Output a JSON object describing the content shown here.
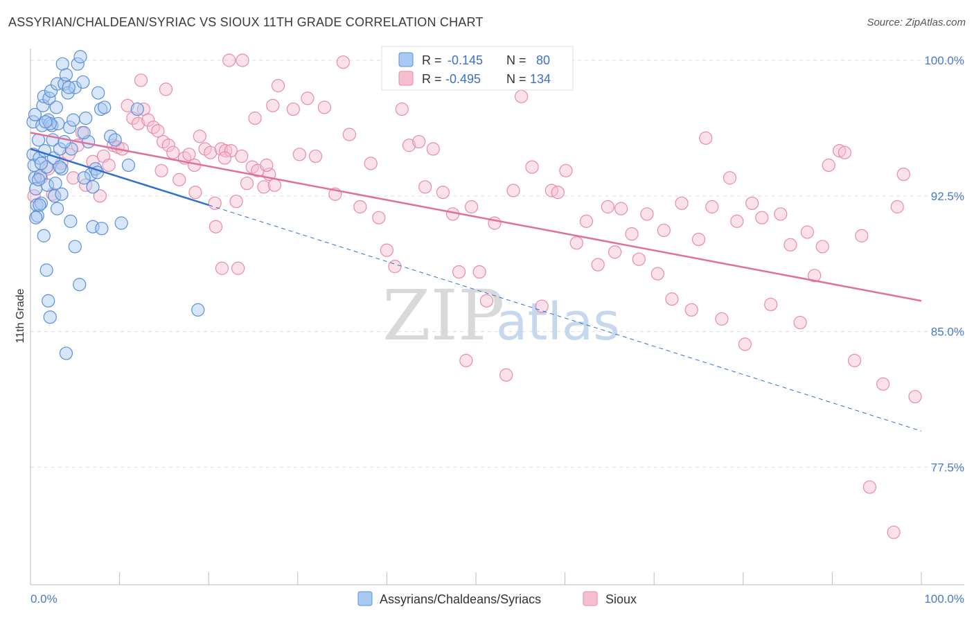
{
  "header": {
    "title": "ASSYRIAN/CHALDEAN/SYRIAC VS SIOUX 11TH GRADE CORRELATION CHART",
    "source": "Source: ZipAtlas.com"
  },
  "watermark": {
    "zip": "ZIP",
    "atlas": "atlas"
  },
  "legend_top": {
    "rows": [
      {
        "r_label": "R =",
        "r_value": "-0.145",
        "n_label": "N =",
        "n_value": "80"
      },
      {
        "r_label": "R =",
        "r_value": "-0.495",
        "n_label": "N =",
        "n_value": "134"
      }
    ]
  },
  "colors": {
    "blue_fill": "#a9c8f2",
    "blue_stroke": "#5a8fd8",
    "blue_line": "#2f6fd0",
    "pink_fill": "#f6bfd0",
    "pink_stroke": "#e98aab",
    "pink_line": "#e0709a",
    "grid": "#dddddd",
    "tick_label": "#4a78c8"
  },
  "chart_data": {
    "type": "scatter",
    "title": "ASSYRIAN/CHALDEAN/SYRIAC VS SIOUX 11TH GRADE CORRELATION CHART",
    "xlabel": "",
    "ylabel": "11th Grade",
    "xlim": [
      0,
      100
    ],
    "ylim": [
      71,
      101
    ],
    "x_tick_labels": [
      "0.0%",
      "100.0%"
    ],
    "y_ticks": [
      77.5,
      85.0,
      92.5,
      100.0
    ],
    "y_tick_labels": [
      "77.5%",
      "85.0%",
      "92.5%",
      "100.0%"
    ],
    "grid": true,
    "legend_position": "top-center",
    "series": [
      {
        "name": "Assyrians/Chaldeans/Syriacs",
        "r": -0.145,
        "n": 80,
        "trend": {
          "x": [
            0,
            20
          ],
          "y": [
            95.1,
            92.0
          ],
          "dashed_to": [
            100,
            79.5
          ]
        },
        "points": [
          [
            0.3,
            94.8
          ],
          [
            0.4,
            94.2
          ],
          [
            0.5,
            93.5
          ],
          [
            0.6,
            92.9
          ],
          [
            0.7,
            92.0
          ],
          [
            0.8,
            91.4
          ],
          [
            0.3,
            96.6
          ],
          [
            0.5,
            97.0
          ],
          [
            0.9,
            95.6
          ],
          [
            1.0,
            94.6
          ],
          [
            1.1,
            93.6
          ],
          [
            1.2,
            92.1
          ],
          [
            1.3,
            96.4
          ],
          [
            1.4,
            97.5
          ],
          [
            1.5,
            98.0
          ],
          [
            1.6,
            95.0
          ],
          [
            1.8,
            94.1
          ],
          [
            1.9,
            93.1
          ],
          [
            2.0,
            96.7
          ],
          [
            2.1,
            97.9
          ],
          [
            2.3,
            98.3
          ],
          [
            2.4,
            96.4
          ],
          [
            2.5,
            95.6
          ],
          [
            2.6,
            94.6
          ],
          [
            2.7,
            92.5
          ],
          [
            2.9,
            97.4
          ],
          [
            3.0,
            98.7
          ],
          [
            3.1,
            96.5
          ],
          [
            3.3,
            95.1
          ],
          [
            3.5,
            94.0
          ],
          [
            3.6,
            99.8
          ],
          [
            3.8,
            98.7
          ],
          [
            4.0,
            99.2
          ],
          [
            4.2,
            98.2
          ],
          [
            4.4,
            96.3
          ],
          [
            4.6,
            95.1
          ],
          [
            4.8,
            96.7
          ],
          [
            5.0,
            98.5
          ],
          [
            5.3,
            99.8
          ],
          [
            5.6,
            100.2
          ],
          [
            5.9,
            98.8
          ],
          [
            6.2,
            96.8
          ],
          [
            6.5,
            95.5
          ],
          [
            6.8,
            93.7
          ],
          [
            7.0,
            93.0
          ],
          [
            7.3,
            94.0
          ],
          [
            7.6,
            98.2
          ],
          [
            7.9,
            97.3
          ],
          [
            8.3,
            97.4
          ],
          [
            1.0,
            92.0
          ],
          [
            1.5,
            90.3
          ],
          [
            1.8,
            88.4
          ],
          [
            2.0,
            86.7
          ],
          [
            2.2,
            85.8
          ],
          [
            3.0,
            91.8
          ],
          [
            3.5,
            92.6
          ],
          [
            4.0,
            83.8
          ],
          [
            4.5,
            91.1
          ],
          [
            5.0,
            89.7
          ],
          [
            5.5,
            87.6
          ],
          [
            6.0,
            93.5
          ],
          [
            7.0,
            90.8
          ],
          [
            7.5,
            93.8
          ],
          [
            8.0,
            90.7
          ],
          [
            9.0,
            95.8
          ],
          [
            9.5,
            95.6
          ],
          [
            10.2,
            91.0
          ],
          [
            11.0,
            94.2
          ],
          [
            12.0,
            97.3
          ],
          [
            18.8,
            86.2
          ],
          [
            0.6,
            91.3
          ],
          [
            1.2,
            94.3
          ],
          [
            2.8,
            93.2
          ],
          [
            3.3,
            94.1
          ],
          [
            4.3,
            98.5
          ],
          [
            2.2,
            96.5
          ],
          [
            3.8,
            95.5
          ],
          [
            1.7,
            96.6
          ],
          [
            0.9,
            93.4
          ],
          [
            6.0,
            96.0
          ]
        ]
      },
      {
        "name": "Sioux",
        "r": -0.495,
        "n": 134,
        "trend": {
          "x": [
            0,
            100
          ],
          "y": [
            96.0,
            86.7
          ]
        },
        "points": [
          [
            0.4,
            92.5
          ],
          [
            1.2,
            93.5
          ],
          [
            2.0,
            94.0
          ],
          [
            2.5,
            92.6
          ],
          [
            3.5,
            94.3
          ],
          [
            4.3,
            94.8
          ],
          [
            4.8,
            93.5
          ],
          [
            5.3,
            95.3
          ],
          [
            5.8,
            96.0
          ],
          [
            6.2,
            93.1
          ],
          [
            7.0,
            94.4
          ],
          [
            7.8,
            92.5
          ],
          [
            8.2,
            94.7
          ],
          [
            8.8,
            94.2
          ],
          [
            9.3,
            95.3
          ],
          [
            9.8,
            95.2
          ],
          [
            10.3,
            95.1
          ],
          [
            10.9,
            97.5
          ],
          [
            11.5,
            96.8
          ],
          [
            12.1,
            96.5
          ],
          [
            12.7,
            97.3
          ],
          [
            13.2,
            96.7
          ],
          [
            13.8,
            96.3
          ],
          [
            14.3,
            96.1
          ],
          [
            14.9,
            95.5
          ],
          [
            15.5,
            95.3
          ],
          [
            16.0,
            94.9
          ],
          [
            16.7,
            93.4
          ],
          [
            17.3,
            94.6
          ],
          [
            17.8,
            94.8
          ],
          [
            18.4,
            94.2
          ],
          [
            19.0,
            95.8
          ],
          [
            19.6,
            95.1
          ],
          [
            20.2,
            94.9
          ],
          [
            20.7,
            92.1
          ],
          [
            21.4,
            95.1
          ],
          [
            21.9,
            95.0
          ],
          [
            22.5,
            95.0
          ],
          [
            23.1,
            92.2
          ],
          [
            23.7,
            94.7
          ],
          [
            24.3,
            93.2
          ],
          [
            24.9,
            94.1
          ],
          [
            25.5,
            93.9
          ],
          [
            26.2,
            93.0
          ],
          [
            26.8,
            93.7
          ],
          [
            27.4,
            93.1
          ],
          [
            12.4,
            98.9
          ],
          [
            14.7,
            93.9
          ],
          [
            15.2,
            98.4
          ],
          [
            18.5,
            92.7
          ],
          [
            20.8,
            90.8
          ],
          [
            21.5,
            88.5
          ],
          [
            23.3,
            88.5
          ],
          [
            21.8,
            94.6
          ],
          [
            22.3,
            100.0
          ],
          [
            23.8,
            100.0
          ],
          [
            25.2,
            96.8
          ],
          [
            26.5,
            94.2
          ],
          [
            27.2,
            97.5
          ],
          [
            27.8,
            98.6
          ],
          [
            29.5,
            97.3
          ],
          [
            30.2,
            94.8
          ],
          [
            31.1,
            97.9
          ],
          [
            32.0,
            94.7
          ],
          [
            33.0,
            97.4
          ],
          [
            34.2,
            92.6
          ],
          [
            35.1,
            99.9
          ],
          [
            35.8,
            95.9
          ],
          [
            37.0,
            91.9
          ],
          [
            38.2,
            94.3
          ],
          [
            39.1,
            91.3
          ],
          [
            40.0,
            89.5
          ],
          [
            40.9,
            88.6
          ],
          [
            41.7,
            97.3
          ],
          [
            42.5,
            95.3
          ],
          [
            43.6,
            95.5
          ],
          [
            44.3,
            93.0
          ],
          [
            45.2,
            95.1
          ],
          [
            46.3,
            92.7
          ],
          [
            47.4,
            91.5
          ],
          [
            48.1,
            88.3
          ],
          [
            48.9,
            83.4
          ],
          [
            49.5,
            91.9
          ],
          [
            50.4,
            88.3
          ],
          [
            51.2,
            86.7
          ],
          [
            52.1,
            91.0
          ],
          [
            53.4,
            82.6
          ],
          [
            54.2,
            92.8
          ],
          [
            55.1,
            98.0
          ],
          [
            56.3,
            94.1
          ],
          [
            57.4,
            86.4
          ],
          [
            58.5,
            92.8
          ],
          [
            59.2,
            92.7
          ],
          [
            60.1,
            93.9
          ],
          [
            61.3,
            89.9
          ],
          [
            62.4,
            91.1
          ],
          [
            63.7,
            88.7
          ],
          [
            64.8,
            91.9
          ],
          [
            65.6,
            89.4
          ],
          [
            66.3,
            91.8
          ],
          [
            67.5,
            90.4
          ],
          [
            68.3,
            89.0
          ],
          [
            69.2,
            91.5
          ],
          [
            70.4,
            88.2
          ],
          [
            71.1,
            90.6
          ],
          [
            72.0,
            86.8
          ],
          [
            73.1,
            92.1
          ],
          [
            74.2,
            86.2
          ],
          [
            75.0,
            90.1
          ],
          [
            75.8,
            95.7
          ],
          [
            76.5,
            91.9
          ],
          [
            77.6,
            85.7
          ],
          [
            78.5,
            93.5
          ],
          [
            79.3,
            91.1
          ],
          [
            80.2,
            84.3
          ],
          [
            81.0,
            92.1
          ],
          [
            82.1,
            91.3
          ],
          [
            83.1,
            86.5
          ],
          [
            84.2,
            91.5
          ],
          [
            85.3,
            89.8
          ],
          [
            86.4,
            85.5
          ],
          [
            87.2,
            90.5
          ],
          [
            88.0,
            88.1
          ],
          [
            88.9,
            89.7
          ],
          [
            89.6,
            94.2
          ],
          [
            90.8,
            95.0
          ],
          [
            91.4,
            94.9
          ],
          [
            92.5,
            83.4
          ],
          [
            93.3,
            90.3
          ],
          [
            94.2,
            76.4
          ],
          [
            95.7,
            82.1
          ],
          [
            96.9,
            73.9
          ],
          [
            97.3,
            91.9
          ],
          [
            98.0,
            93.7
          ],
          [
            99.3,
            81.4
          ]
        ]
      }
    ]
  },
  "legend_bottom": {
    "items": [
      {
        "label": "Assyrians/Chaldeans/Syriacs"
      },
      {
        "label": "Sioux"
      }
    ]
  }
}
